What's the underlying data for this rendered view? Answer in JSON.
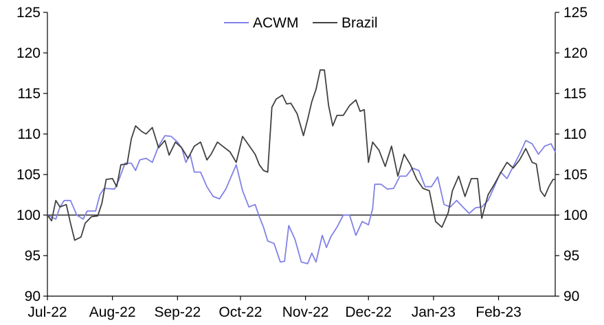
{
  "chart_data": {
    "type": "line",
    "title": "",
    "xlabel": "",
    "ylabel": "",
    "x_tick_labels": [
      "Jul-22",
      "Aug-22",
      "Sep-22",
      "Oct-22",
      "Nov-22",
      "Dec-22",
      "Jan-23",
      "Feb-23"
    ],
    "x_range": [
      "2022-07-01",
      "2023-02-28"
    ],
    "ylim": [
      90,
      125
    ],
    "y_ticks": [
      90,
      95,
      100,
      105,
      110,
      115,
      120,
      125
    ],
    "y_tick_labels": [
      "90",
      "95",
      "100",
      "105",
      "110",
      "115",
      "120",
      "125"
    ],
    "secondary_y_axis": true,
    "reference_line": 100,
    "grid": false,
    "legend": {
      "placement": "top-center",
      "entries": [
        "ACWM",
        "Brazil"
      ]
    },
    "series": [
      {
        "name": "ACWM",
        "color": "#8080e8",
        "points": [
          [
            "2022-07-01",
            100.0
          ],
          [
            "2022-07-05",
            99.5
          ],
          [
            "2022-07-07",
            101.0
          ],
          [
            "2022-07-09",
            101.8
          ],
          [
            "2022-07-12",
            101.8
          ],
          [
            "2022-07-15",
            100.0
          ],
          [
            "2022-07-18",
            99.5
          ],
          [
            "2022-07-20",
            100.5
          ],
          [
            "2022-07-24",
            100.5
          ],
          [
            "2022-07-26",
            102.5
          ],
          [
            "2022-07-28",
            103.3
          ],
          [
            "2022-08-02",
            103.2
          ],
          [
            "2022-08-04",
            104.3
          ],
          [
            "2022-08-07",
            106.4
          ],
          [
            "2022-08-10",
            106.4
          ],
          [
            "2022-08-12",
            105.5
          ],
          [
            "2022-08-14",
            106.8
          ],
          [
            "2022-08-17",
            107.0
          ],
          [
            "2022-08-20",
            106.5
          ],
          [
            "2022-08-23",
            108.5
          ],
          [
            "2022-08-26",
            109.8
          ],
          [
            "2022-08-29",
            109.7
          ],
          [
            "2022-09-01",
            109.0
          ],
          [
            "2022-09-03",
            108.3
          ],
          [
            "2022-09-05",
            106.5
          ],
          [
            "2022-09-07",
            107.5
          ],
          [
            "2022-09-09",
            105.3
          ],
          [
            "2022-09-12",
            105.3
          ],
          [
            "2022-09-15",
            103.5
          ],
          [
            "2022-09-18",
            102.3
          ],
          [
            "2022-09-21",
            102.0
          ],
          [
            "2022-09-24",
            103.2
          ],
          [
            "2022-09-27",
            105.0
          ],
          [
            "2022-09-29",
            106.2
          ],
          [
            "2022-10-02",
            103.0
          ],
          [
            "2022-10-05",
            101.0
          ],
          [
            "2022-10-08",
            101.3
          ],
          [
            "2022-10-10",
            99.8
          ],
          [
            "2022-10-12",
            98.5
          ],
          [
            "2022-10-14",
            96.8
          ],
          [
            "2022-10-17",
            96.5
          ],
          [
            "2022-10-20",
            94.2
          ],
          [
            "2022-10-22",
            94.3
          ],
          [
            "2022-10-24",
            98.7
          ],
          [
            "2022-10-27",
            97.0
          ],
          [
            "2022-10-30",
            94.2
          ],
          [
            "2022-11-02",
            94.0
          ],
          [
            "2022-11-04",
            95.3
          ],
          [
            "2022-11-06",
            94.2
          ],
          [
            "2022-11-09",
            97.5
          ],
          [
            "2022-11-11",
            96.0
          ],
          [
            "2022-11-13",
            97.3
          ],
          [
            "2022-11-16",
            98.5
          ],
          [
            "2022-11-19",
            100.0
          ],
          [
            "2022-11-22",
            100.0
          ],
          [
            "2022-11-25",
            97.5
          ],
          [
            "2022-11-28",
            99.2
          ],
          [
            "2022-12-01",
            98.8
          ],
          [
            "2022-12-03",
            100.8
          ],
          [
            "2022-12-04",
            103.8
          ],
          [
            "2022-12-07",
            103.8
          ],
          [
            "2022-12-10",
            103.2
          ],
          [
            "2022-12-13",
            103.3
          ],
          [
            "2022-12-16",
            104.8
          ],
          [
            "2022-12-19",
            104.8
          ],
          [
            "2022-12-22",
            105.8
          ],
          [
            "2022-12-25",
            105.5
          ],
          [
            "2022-12-28",
            103.5
          ],
          [
            "2022-12-31",
            103.5
          ],
          [
            "2023-01-03",
            104.7
          ],
          [
            "2023-01-06",
            101.3
          ],
          [
            "2023-01-09",
            101.0
          ],
          [
            "2023-01-12",
            101.8
          ],
          [
            "2023-01-15",
            101.0
          ],
          [
            "2023-01-18",
            100.2
          ],
          [
            "2023-01-21",
            100.9
          ],
          [
            "2023-01-24",
            101.0
          ],
          [
            "2023-01-27",
            101.8
          ],
          [
            "2023-01-30",
            103.5
          ],
          [
            "2023-02-02",
            105.3
          ],
          [
            "2023-02-05",
            104.5
          ],
          [
            "2023-02-08",
            106.0
          ],
          [
            "2023-02-11",
            107.5
          ],
          [
            "2023-02-14",
            109.2
          ],
          [
            "2023-02-17",
            108.8
          ],
          [
            "2023-02-20",
            107.5
          ],
          [
            "2023-02-23",
            108.5
          ],
          [
            "2023-02-26",
            108.8
          ],
          [
            "2023-02-28",
            107.8
          ]
        ]
      },
      {
        "name": "Brazil",
        "color": "#404040",
        "points": [
          [
            "2022-07-01",
            100.0
          ],
          [
            "2022-07-03",
            99.3
          ],
          [
            "2022-07-05",
            101.8
          ],
          [
            "2022-07-07",
            101.0
          ],
          [
            "2022-07-10",
            101.3
          ],
          [
            "2022-07-12",
            99.0
          ],
          [
            "2022-07-14",
            96.9
          ],
          [
            "2022-07-17",
            97.3
          ],
          [
            "2022-07-19",
            99.0
          ],
          [
            "2022-07-22",
            99.8
          ],
          [
            "2022-07-25",
            99.9
          ],
          [
            "2022-07-27",
            101.5
          ],
          [
            "2022-07-29",
            104.4
          ],
          [
            "2022-08-01",
            104.5
          ],
          [
            "2022-08-03",
            103.5
          ],
          [
            "2022-08-05",
            106.2
          ],
          [
            "2022-08-08",
            106.3
          ],
          [
            "2022-08-10",
            109.4
          ],
          [
            "2022-08-12",
            111.0
          ],
          [
            "2022-08-15",
            110.3
          ],
          [
            "2022-08-17",
            110.0
          ],
          [
            "2022-08-20",
            110.8
          ],
          [
            "2022-08-23",
            108.3
          ],
          [
            "2022-08-26",
            109.2
          ],
          [
            "2022-08-28",
            107.4
          ],
          [
            "2022-08-31",
            109.0
          ],
          [
            "2022-09-03",
            108.3
          ],
          [
            "2022-09-06",
            107.0
          ],
          [
            "2022-09-09",
            108.5
          ],
          [
            "2022-09-12",
            109.0
          ],
          [
            "2022-09-15",
            106.8
          ],
          [
            "2022-09-17",
            107.5
          ],
          [
            "2022-09-20",
            109.0
          ],
          [
            "2022-09-23",
            108.4
          ],
          [
            "2022-09-26",
            107.8
          ],
          [
            "2022-09-29",
            106.5
          ],
          [
            "2022-10-02",
            109.7
          ],
          [
            "2022-10-05",
            108.6
          ],
          [
            "2022-10-08",
            107.5
          ],
          [
            "2022-10-10",
            106.2
          ],
          [
            "2022-10-12",
            105.5
          ],
          [
            "2022-10-14",
            105.3
          ],
          [
            "2022-10-16",
            113.3
          ],
          [
            "2022-10-18",
            114.3
          ],
          [
            "2022-10-21",
            114.8
          ],
          [
            "2022-10-23",
            113.7
          ],
          [
            "2022-10-25",
            113.8
          ],
          [
            "2022-10-28",
            112.5
          ],
          [
            "2022-10-31",
            109.8
          ],
          [
            "2022-11-02",
            111.8
          ],
          [
            "2022-11-04",
            114.0
          ],
          [
            "2022-11-06",
            115.5
          ],
          [
            "2022-11-08",
            117.9
          ],
          [
            "2022-11-10",
            117.9
          ],
          [
            "2022-11-12",
            113.5
          ],
          [
            "2022-11-14",
            111.0
          ],
          [
            "2022-11-16",
            112.3
          ],
          [
            "2022-11-19",
            112.3
          ],
          [
            "2022-11-22",
            113.5
          ],
          [
            "2022-11-25",
            114.2
          ],
          [
            "2022-11-27",
            112.8
          ],
          [
            "2022-11-29",
            113.0
          ],
          [
            "2022-12-01",
            106.5
          ],
          [
            "2022-12-03",
            109.0
          ],
          [
            "2022-12-06",
            108.0
          ],
          [
            "2022-12-09",
            106.0
          ],
          [
            "2022-12-12",
            108.5
          ],
          [
            "2022-12-15",
            104.8
          ],
          [
            "2022-12-18",
            107.5
          ],
          [
            "2022-12-21",
            106.2
          ],
          [
            "2022-12-24",
            104.4
          ],
          [
            "2022-12-27",
            103.3
          ],
          [
            "2022-12-30",
            103.0
          ],
          [
            "2023-01-02",
            99.2
          ],
          [
            "2023-01-05",
            98.5
          ],
          [
            "2023-01-08",
            100.3
          ],
          [
            "2023-01-10",
            103.0
          ],
          [
            "2023-01-13",
            104.8
          ],
          [
            "2023-01-16",
            102.3
          ],
          [
            "2023-01-19",
            104.5
          ],
          [
            "2023-01-22",
            104.5
          ],
          [
            "2023-01-24",
            99.6
          ],
          [
            "2023-01-27",
            102.5
          ],
          [
            "2023-01-30",
            103.8
          ],
          [
            "2023-02-02",
            105.2
          ],
          [
            "2023-02-05",
            106.5
          ],
          [
            "2023-02-08",
            105.8
          ],
          [
            "2023-02-11",
            106.8
          ],
          [
            "2023-02-14",
            108.2
          ],
          [
            "2023-02-17",
            106.5
          ],
          [
            "2023-02-19",
            106.3
          ],
          [
            "2023-02-21",
            103.0
          ],
          [
            "2023-02-23",
            102.3
          ],
          [
            "2023-02-25",
            103.5
          ],
          [
            "2023-02-27",
            104.4
          ],
          [
            "2023-02-28",
            104.4
          ]
        ]
      }
    ]
  }
}
